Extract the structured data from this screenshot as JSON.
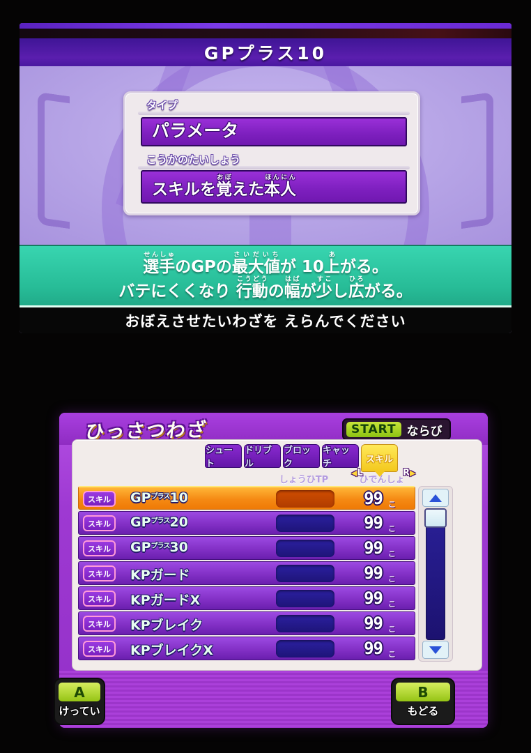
{
  "colors": {
    "frame_purple": "#9e39d2",
    "row_purple": "#8330c6",
    "selected_row_orange": "#f58a14",
    "tab_yellow": "#f3c81e",
    "start_key_green": "#8cc212",
    "effect_band_teal": "#2bbf9a",
    "tp_bar_navy": "#1e1478",
    "tp_bar_selected": "#c04400",
    "title_band_purple": "#4a18a0"
  },
  "top_screen": {
    "title": "GPプラス10",
    "type_label": "タイプ",
    "type_value": "パラメータ",
    "target_label": "こうかのたいしょう",
    "target_ruby": [
      {
        "t": "スキルを"
      },
      {
        "t": "覚",
        "r": "おぼ"
      },
      {
        "t": "えた"
      },
      {
        "t": "本",
        "r": "ほん"
      },
      {
        "t": "人",
        "r": "にん"
      }
    ],
    "effect_lines": [
      [
        {
          "t": "選手",
          "r": "せんしゅ"
        },
        {
          "t": "のGPの"
        },
        {
          "t": "最大値",
          "r": "さいだいち"
        },
        {
          "t": "が 10"
        },
        {
          "t": "上",
          "r": "あ"
        },
        {
          "t": "がる。"
        }
      ],
      [
        {
          "t": "バテにくくなり "
        },
        {
          "t": "行動",
          "r": "こうどう"
        },
        {
          "t": "の"
        },
        {
          "t": "幅",
          "r": "はば"
        },
        {
          "t": "が"
        },
        {
          "t": "少",
          "r": "すこ"
        },
        {
          "t": "し"
        },
        {
          "t": "広",
          "r": "ひろ"
        },
        {
          "t": "がる。"
        }
      ]
    ],
    "hint": "おぼえさせたいわざを えらんでください"
  },
  "bottom_screen": {
    "title": "ひっさつわざ",
    "sort": {
      "start_label": "START",
      "label": "ならび"
    },
    "tabs": [
      {
        "key": "shoot",
        "label": "シュート",
        "selected": false
      },
      {
        "key": "dribble",
        "label": "ドリブル",
        "selected": false
      },
      {
        "key": "block",
        "label": "ブロック",
        "selected": false
      },
      {
        "key": "catch",
        "label": "キャッチ",
        "selected": false
      },
      {
        "key": "skill",
        "label": "スキル",
        "selected": true
      }
    ],
    "shoulder_left": "L",
    "shoulder_right": "R",
    "columns": {
      "tp": "しょうひTP",
      "count": "ひでんしょ"
    },
    "unit": "こ",
    "rows": [
      {
        "badge": "スキル",
        "name": [
          {
            "t": "GP"
          },
          {
            "t": "プラス",
            "small": true
          },
          {
            "t": "10"
          }
        ],
        "count": "99",
        "selected": true
      },
      {
        "badge": "スキル",
        "name": [
          {
            "t": "GP"
          },
          {
            "t": "プラス",
            "small": true
          },
          {
            "t": "20"
          }
        ],
        "count": "99",
        "selected": false
      },
      {
        "badge": "スキル",
        "name": [
          {
            "t": "GP"
          },
          {
            "t": "プラス",
            "small": true
          },
          {
            "t": "30"
          }
        ],
        "count": "99",
        "selected": false
      },
      {
        "badge": "スキル",
        "name": [
          {
            "t": "KPガード"
          }
        ],
        "count": "99",
        "selected": false
      },
      {
        "badge": "スキル",
        "name": [
          {
            "t": "KPガードX"
          }
        ],
        "count": "99",
        "selected": false
      },
      {
        "badge": "スキル",
        "name": [
          {
            "t": "KPブレイク"
          }
        ],
        "count": "99",
        "selected": false
      },
      {
        "badge": "スキル",
        "name": [
          {
            "t": "KPブレイクX"
          }
        ],
        "count": "99",
        "selected": false
      }
    ],
    "buttons": {
      "a": "A",
      "a_label": "けってい",
      "b": "B",
      "b_label": "もどる"
    }
  }
}
